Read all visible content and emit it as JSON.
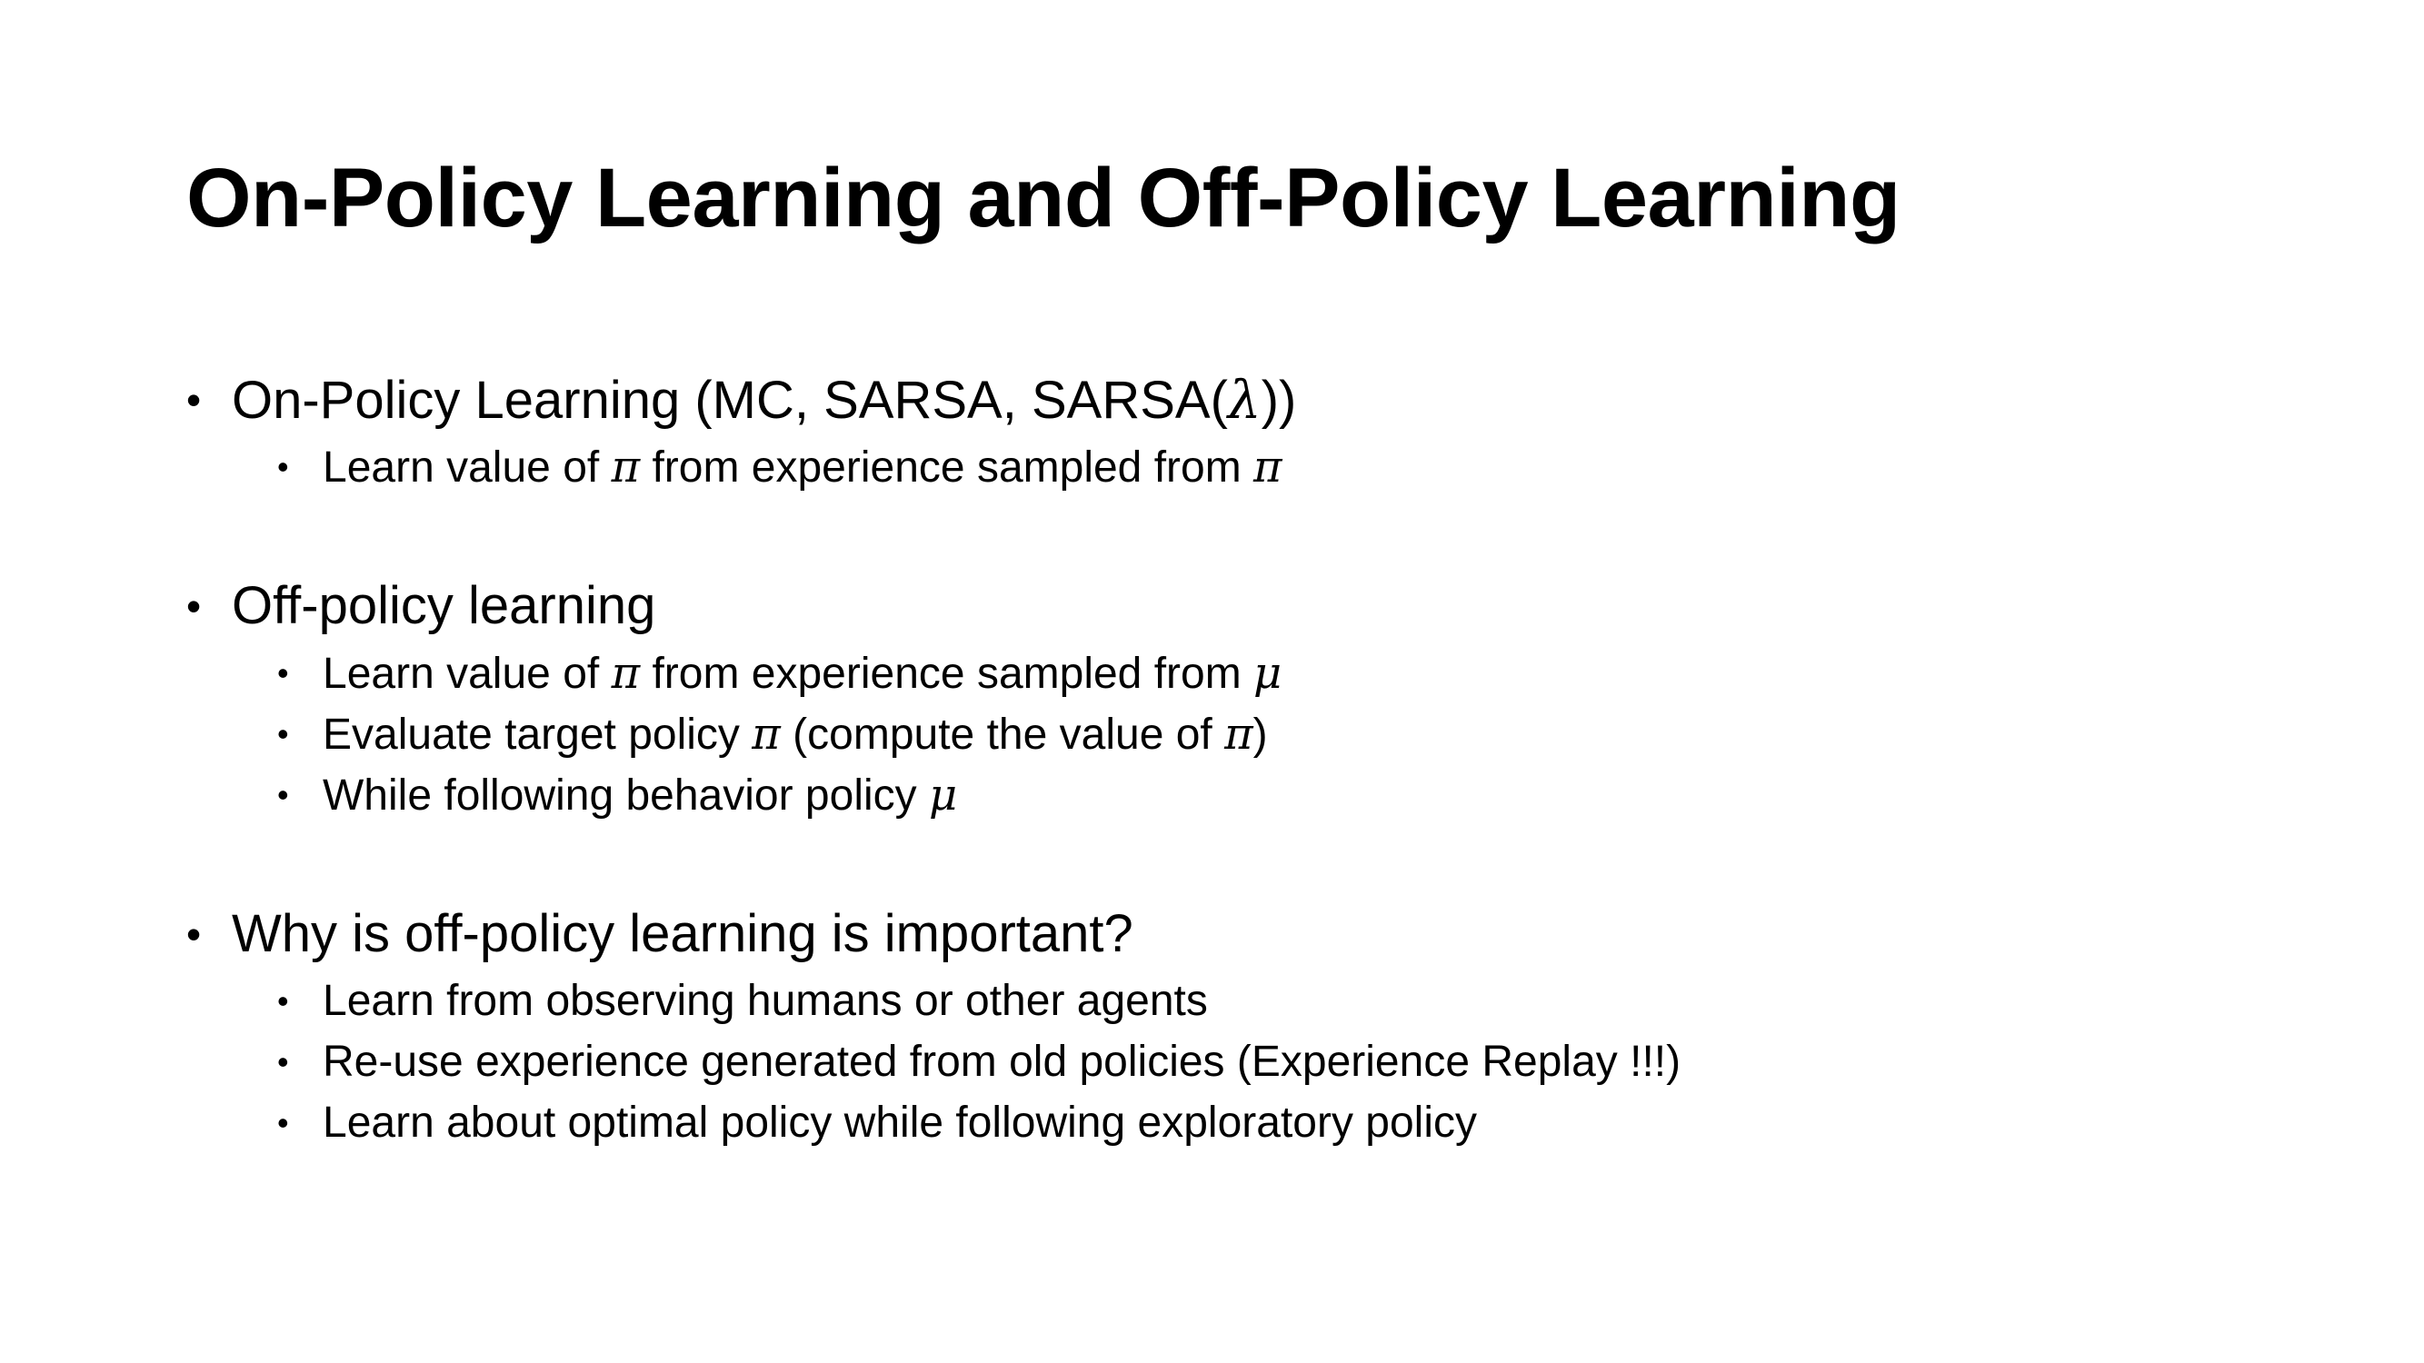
{
  "slide": {
    "title": "On-Policy Learning and Off-Policy Learning",
    "bullet_glyph": "•",
    "sections": [
      {
        "heading": {
          "pre": "On-Policy Learning (MC, SARSA, SARSA(",
          "math": "λ",
          "post": "))"
        },
        "items": [
          {
            "pre": "Learn value of ",
            "math1": "π",
            "mid": " from experience sampled from ",
            "math2": "π",
            "post": ""
          }
        ]
      },
      {
        "heading": {
          "pre": "Off-policy learning",
          "math": "",
          "post": ""
        },
        "items": [
          {
            "pre": "Learn value of ",
            "math1": "π",
            "mid": " from experience sampled from ",
            "math2": "μ",
            "post": ""
          },
          {
            "pre": "Evaluate target policy ",
            "math1": "π",
            "mid": " (compute the value of ",
            "math2": "π",
            "post": ")"
          },
          {
            "pre": "While following behavior policy ",
            "math1": "μ",
            "mid": "",
            "math2": "",
            "post": ""
          }
        ]
      },
      {
        "heading": {
          "pre": "Why is off-policy learning is important?",
          "math": "",
          "post": ""
        },
        "items": [
          {
            "pre": "Learn from observing humans or other agents",
            "math1": "",
            "mid": "",
            "math2": "",
            "post": ""
          },
          {
            "pre": "Re-use experience generated from old policies (Experience Replay !!!)",
            "math1": "",
            "mid": "",
            "math2": "",
            "post": ""
          },
          {
            "pre": "Learn about optimal policy while following exploratory policy",
            "math1": "",
            "mid": "",
            "math2": "",
            "post": ""
          }
        ]
      }
    ]
  }
}
